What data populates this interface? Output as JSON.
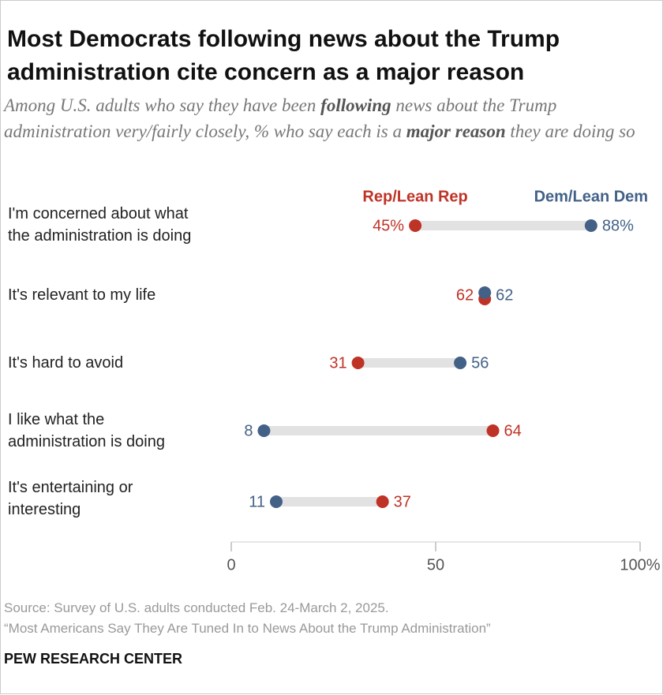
{
  "chart_data": {
    "type": "dumbbell",
    "title": "Most Democrats following news about the Trump administration cite concern as a major reason",
    "subtitle": [
      "Among U.S. adults who say they have been ",
      "following",
      " news about the Trump administration very/fairly closely, % who say each is a ",
      "major reason",
      " they are doing so"
    ],
    "categories": [
      "I'm concerned about what\nthe administration is doing",
      "It's relevant to my life",
      "It's hard to avoid",
      "I like what the\nadministration is doing",
      "It's entertaining or\ninteresting"
    ],
    "series": [
      {
        "name": "Rep/Lean Rep",
        "color": "#bf3327",
        "values": [
          45,
          62,
          31,
          64,
          37
        ],
        "value_labels": [
          "45%",
          "62",
          "31",
          "64",
          "37"
        ]
      },
      {
        "name": "Dem/Lean Dem",
        "color": "#436187",
        "values": [
          88,
          62,
          56,
          8,
          11
        ],
        "value_labels": [
          "88%",
          "62",
          "56",
          "8",
          "11"
        ]
      }
    ],
    "xlim": [
      0,
      100
    ],
    "xticks": [
      0,
      50,
      {
        "value": 100,
        "label": "100%"
      }
    ],
    "bar_color": "#e2e2e2",
    "source": "Source: Survey of U.S. adults conducted Feb. 24-March 2, 2025.",
    "note": "“Most Americans Say They Are Tuned In to News About the Trump Administration”",
    "credit": "PEW RESEARCH CENTER"
  }
}
